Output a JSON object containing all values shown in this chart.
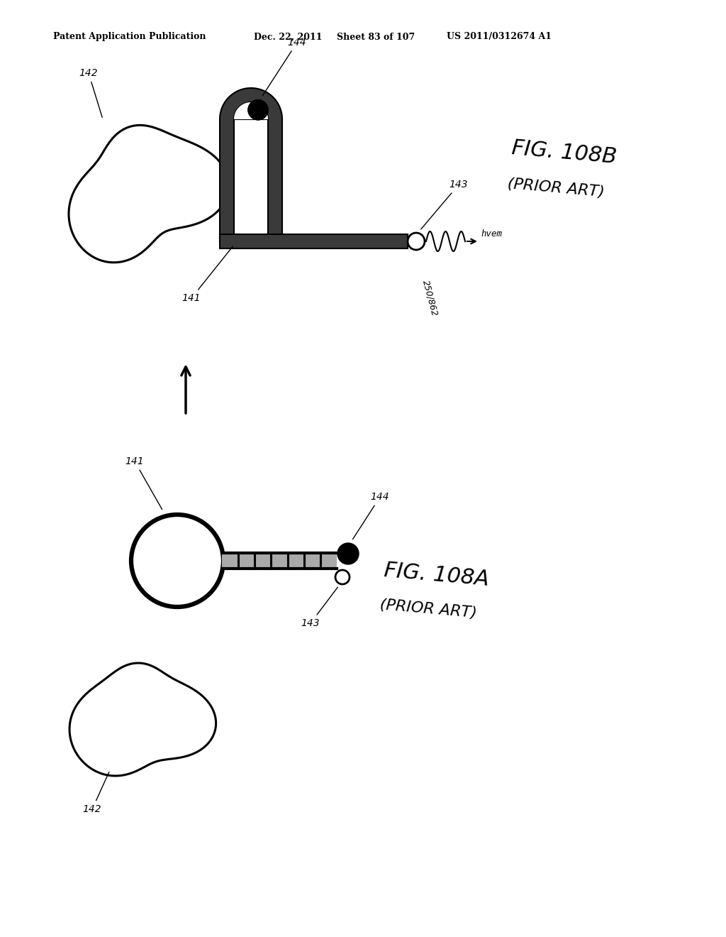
{
  "background_color": "#ffffff",
  "header_text": "Patent Application Publication",
  "header_date": "Dec. 22, 2011",
  "header_sheet": "Sheet 83 of 107",
  "header_patent": "US 2011/0312674 A1",
  "fig_108B_title": "FIG. 108B",
  "fig_108B_subtitle": "(PRIOR ART)",
  "fig_108A_title": "FIG. 108A",
  "fig_108A_subtitle": "(PRIOR ART)",
  "label_141_top": "141",
  "label_142_top": "142",
  "label_143_top": "143",
  "label_144_top": "144",
  "label_250_862": "250/862",
  "label_hvem": "hvem",
  "label_141_bot": "141",
  "label_142_bot": "142",
  "label_143_bot": "143",
  "label_144_bot": "144"
}
